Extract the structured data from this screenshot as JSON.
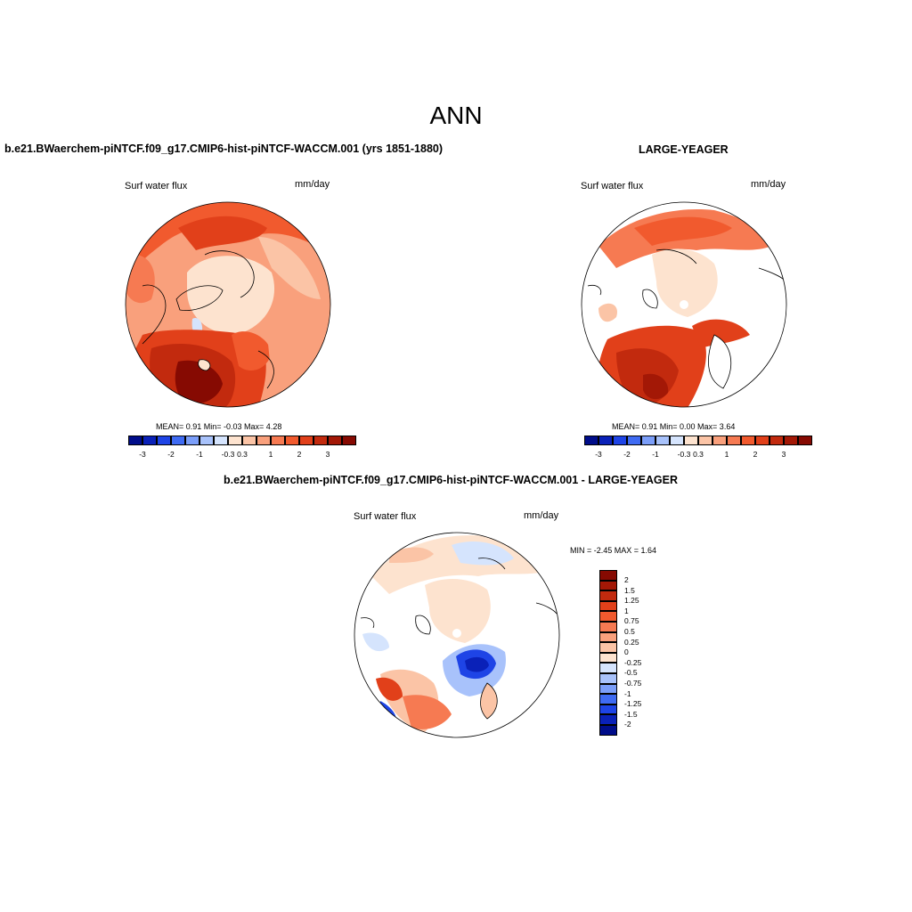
{
  "title": "ANN",
  "panels": [
    {
      "case": "b.e21.BWaerchem-piNTCF.f09_g17.CMIP6-hist-piNTCF-WACCM.001 (yrs 1851-1880)",
      "variable": "Surf water flux",
      "units": "mm/day",
      "stats": "MEAN=   0.91  Min=   -0.03  Max=    4.28",
      "stats_values": {
        "mean": 0.91,
        "min": -0.03,
        "max": 4.28
      }
    },
    {
      "case": "LARGE-YEAGER",
      "variable": "Surf water flux",
      "units": "mm/day",
      "stats": "MEAN=   0.91  Min=    0.00  Max=    3.64",
      "stats_values": {
        "mean": 0.91,
        "min": 0.0,
        "max": 3.64
      }
    },
    {
      "case": "b.e21.BWaerchem-piNTCF.f09_g17.CMIP6-hist-piNTCF-WACCM.001 - LARGE-YEAGER",
      "variable": "Surf water flux",
      "units": "mm/day",
      "stats": "MIN =  -2.45 MAX =   1.64",
      "stats_values": {
        "min": -2.45,
        "max": 1.64
      }
    }
  ],
  "colorbar_main": {
    "colors": [
      "#000d8a",
      "#0a21b8",
      "#1e44e6",
      "#3f6bf3",
      "#7b9ef9",
      "#a8c2fb",
      "#d5e4fd",
      "#fde3cf",
      "#fbc4a6",
      "#f9a07c",
      "#f67a52",
      "#f15a2e",
      "#e1401a",
      "#c22a0e",
      "#a31806",
      "#860a02"
    ],
    "labels": [
      "-3",
      "-2",
      "-1",
      "-0.3",
      "0.3",
      "1",
      "2",
      "3"
    ]
  },
  "colorbar_diff": {
    "colors": [
      "#860a02",
      "#a31806",
      "#c22a0e",
      "#e1401a",
      "#f15a2e",
      "#f67a52",
      "#f9a07c",
      "#fbc4a6",
      "#fde3cf",
      "#d5e4fd",
      "#a8c2fb",
      "#7b9ef9",
      "#3f6bf3",
      "#1e44e6",
      "#0a21b8",
      "#000d8a"
    ],
    "labels": [
      "2",
      "1.5",
      "1.25",
      "1",
      "0.75",
      "0.5",
      "0.25",
      "0",
      "-0.25",
      "-0.5",
      "-0.75",
      "-1",
      "-1.25",
      "-1.5",
      "-2"
    ]
  }
}
